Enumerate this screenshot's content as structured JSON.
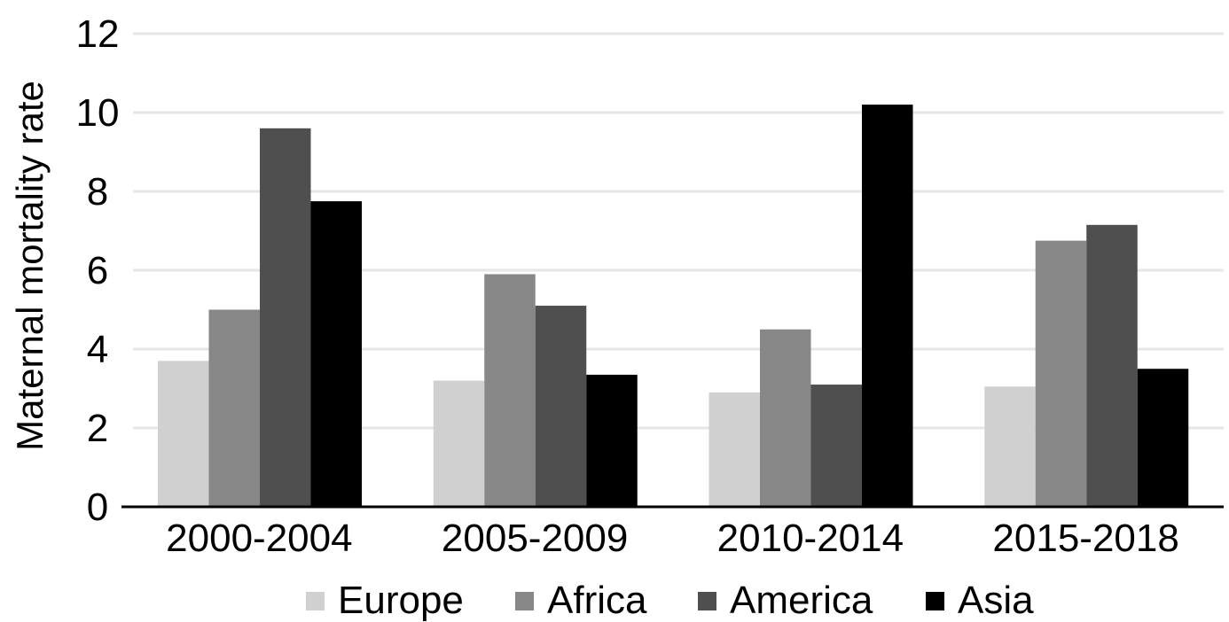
{
  "chart_data": {
    "type": "bar",
    "title": "",
    "xlabel": "",
    "ylabel": "Maternal mortality rate",
    "ylim": [
      0,
      12
    ],
    "yticks": [
      0,
      2,
      4,
      6,
      8,
      10,
      12
    ],
    "grid": true,
    "legend_position": "bottom",
    "categories": [
      "2000-2004",
      "2005-2009",
      "2010-2014",
      "2015-2018"
    ],
    "series": [
      {
        "name": "Europe",
        "color": "#d0d0d0",
        "values": [
          3.7,
          3.2,
          2.9,
          3.05
        ]
      },
      {
        "name": "Africa",
        "color": "#878787",
        "values": [
          5.0,
          5.9,
          4.5,
          6.75
        ]
      },
      {
        "name": "America",
        "color": "#4f4f4f",
        "values": [
          9.6,
          5.1,
          3.1,
          7.15
        ]
      },
      {
        "name": "Asia",
        "color": "#000000",
        "values": [
          7.75,
          3.35,
          10.2,
          3.5
        ]
      }
    ]
  }
}
